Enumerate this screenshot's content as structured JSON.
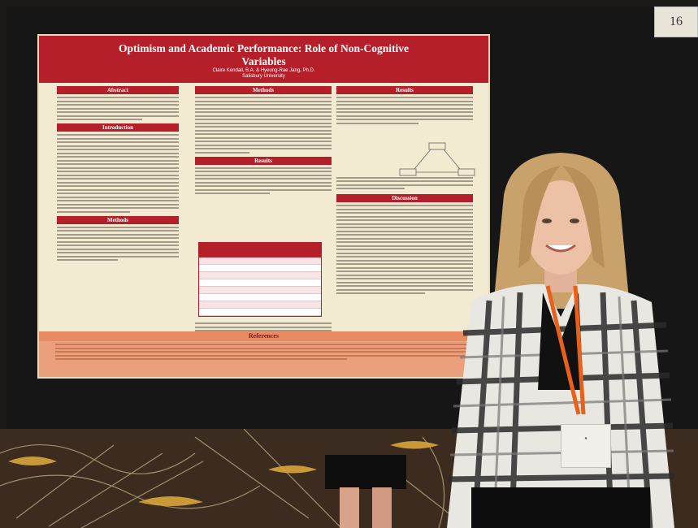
{
  "booth_number": "16",
  "poster": {
    "title": "Optimism and Academic Performance: Role of Non-Cognitive Variables",
    "authors": "Claire Kendall, B.A. & Hyeung-Rae Jang, Ph.D.",
    "affiliation": "Salisbury University",
    "sections": {
      "abstract": "Abstract",
      "introduction": "Introduction",
      "methods_left": "Methods",
      "methods_middle": "Methods",
      "results_middle": "Results",
      "results_right": "Results",
      "discussion": "Discussion",
      "references": "References"
    }
  },
  "colors": {
    "poster_red": "#b51f2a",
    "poster_bg": "#f3ead2",
    "references_bg": "#eba07c",
    "lanyard": "#e8601a"
  }
}
